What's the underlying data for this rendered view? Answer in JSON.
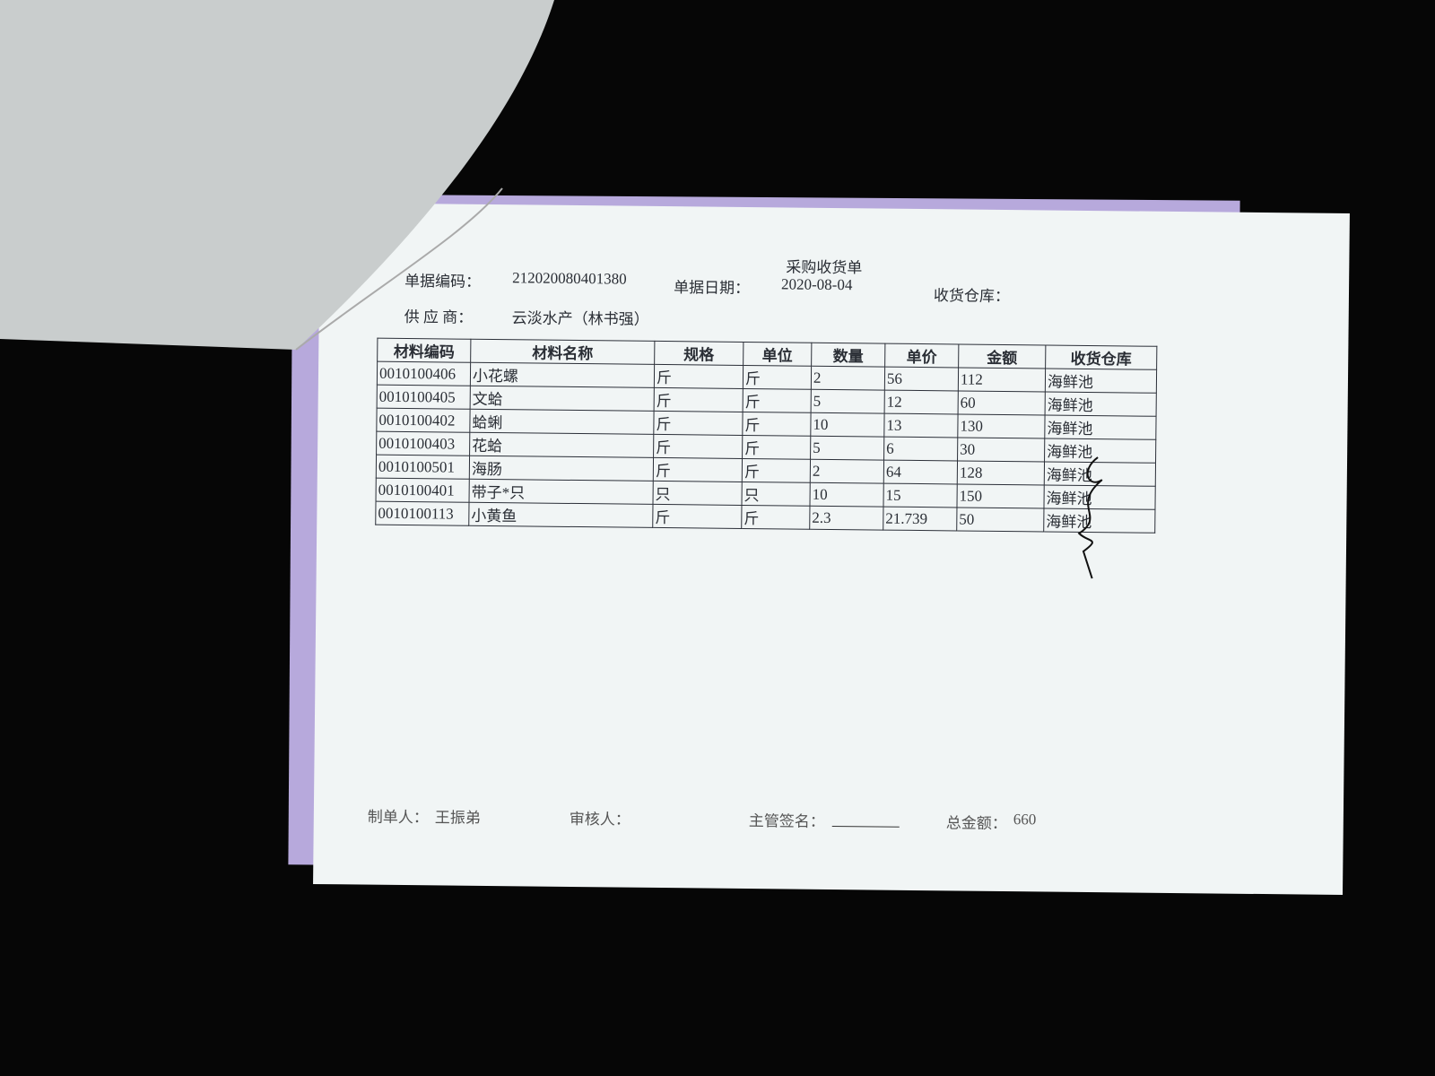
{
  "document": {
    "title": "采购收货单",
    "fields": [
      {
        "label": "单据编码：",
        "value": "212020080401380"
      },
      {
        "label": "单据日期：",
        "value": "2020-08-04"
      },
      {
        "label": "收货仓库："
      },
      {
        "label": "供 应 商：",
        "value": "云淡水产（林书强）"
      }
    ],
    "table": {
      "header": [
        "材料编码",
        "材料名称",
        "规格",
        "单位",
        "数量",
        "单价",
        "金额",
        "收货仓库"
      ],
      "rows": [
        [
          "0010100406",
          "小花螺",
          "斤",
          "斤",
          "2",
          "56",
          "112",
          "海鲜池"
        ],
        [
          "0010100405",
          "文蛤",
          "斤",
          "斤",
          "5",
          "12",
          "60",
          "海鲜池"
        ],
        [
          "0010100402",
          "蛤蜊",
          "斤",
          "斤",
          "10",
          "13",
          "130",
          "海鲜池"
        ],
        [
          "0010100403",
          "花蛤",
          "斤",
          "斤",
          "5",
          "6",
          "30",
          "海鲜池"
        ],
        [
          "0010100501",
          "海肠",
          "斤",
          "斤",
          "2",
          "64",
          "128",
          "海鲜池"
        ],
        [
          "0010100401",
          "带子*只",
          "只",
          "只",
          "10",
          "15",
          "150",
          "海鲜池"
        ],
        [
          "0010100113",
          "小黄鱼",
          "斤",
          "斤",
          "2.3",
          "21.739",
          "50",
          "海鲜池"
        ]
      ]
    },
    "footer": [
      {
        "label": "制单人：",
        "value": "王振弟"
      },
      {
        "label": "审核人："
      },
      {
        "label": "主管签名："
      },
      {
        "label": "总金额：",
        "value": "660"
      }
    ]
  }
}
